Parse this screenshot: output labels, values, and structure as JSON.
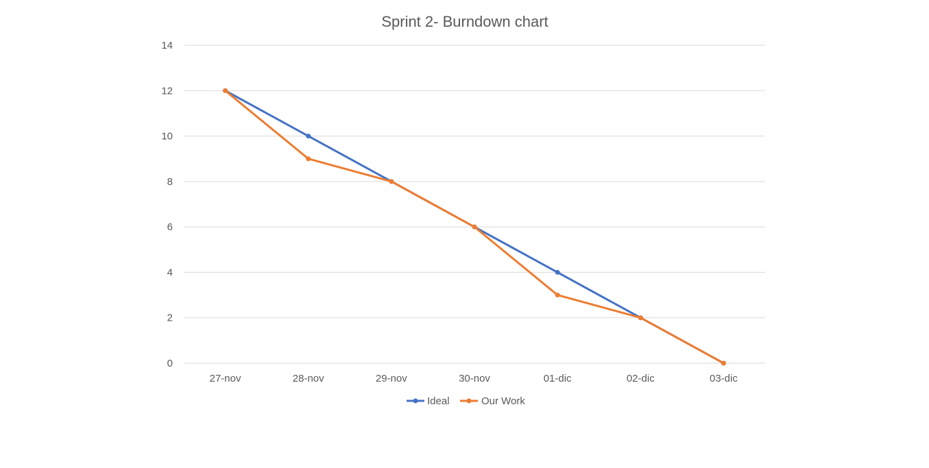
{
  "chart_data": {
    "type": "line",
    "title": "Sprint 2- Burndown chart",
    "xlabel": "",
    "ylabel": "",
    "categories": [
      "27-nov",
      "28-nov",
      "29-nov",
      "30-nov",
      "01-dic",
      "02-dic",
      "03-dic"
    ],
    "ylim": [
      0,
      14
    ],
    "yticks": [
      "0",
      "2",
      "4",
      "6",
      "8",
      "10",
      "12",
      "14"
    ],
    "grid": true,
    "legend_position": "bottom",
    "series": [
      {
        "name": "Ideal",
        "color": "#4472c4",
        "values": [
          12,
          10,
          8,
          6,
          4,
          2,
          0
        ]
      },
      {
        "name": "Our Work",
        "color": "#ed7d31",
        "values": [
          12,
          9,
          8,
          6,
          3,
          2,
          0
        ]
      }
    ]
  }
}
